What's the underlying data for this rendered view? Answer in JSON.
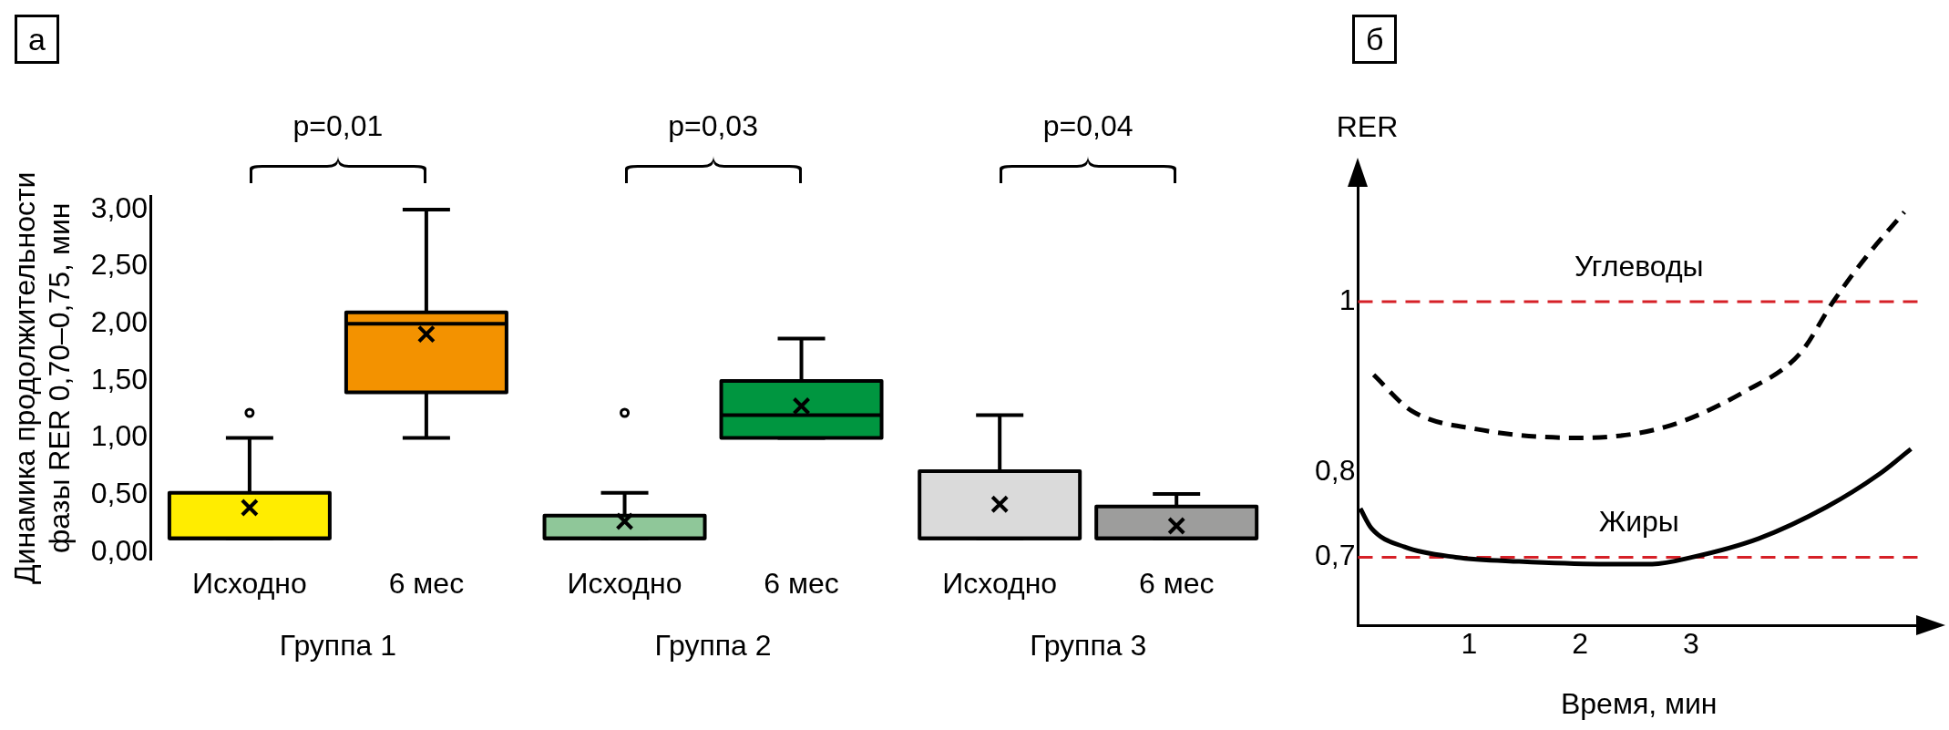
{
  "chart_data": [
    {
      "type": "box",
      "title": "а",
      "ylabel": "Динамика продолжительности\nфазы RER 0,70–0,75, мин",
      "categories": [
        "Группа 1",
        "Группа 2",
        "Группа 3"
      ],
      "ylim": [
        -0.07,
        3.12
      ],
      "yticks": [
        {
          "value": 0,
          "label": "0,00"
        },
        {
          "value": 0.5,
          "label": "0,50"
        },
        {
          "value": 1,
          "label": "1,00"
        },
        {
          "value": 1.5,
          "label": "1,50"
        },
        {
          "value": 2,
          "label": "2,00"
        },
        {
          "value": 2.5,
          "label": "2,50"
        },
        {
          "value": 3,
          "label": "3,00"
        }
      ],
      "annotations": [
        "p=0,01",
        "p=0,03",
        "p=0,04"
      ],
      "series": [
        {
          "name": "Исходно",
          "colors": [
            "#ffed00",
            "#8fc799",
            "#dadada"
          ],
          "boxes": [
            {
              "low": 0.12,
              "q1": 0.12,
              "median": 0.12,
              "q3": 0.52,
              "high": 1.0,
              "mean": 0.39,
              "outliers": [
                1.22
              ]
            },
            {
              "low": 0.12,
              "q1": 0.12,
              "median": 0.12,
              "q3": 0.32,
              "high": 0.52,
              "mean": 0.27,
              "outliers": [
                1.22
              ]
            },
            {
              "low": 0.12,
              "q1": 0.12,
              "median": 0.12,
              "q3": 0.71,
              "high": 1.2,
              "mean": 0.42
            }
          ]
        },
        {
          "name": "6 мес",
          "colors": [
            "#f39200",
            "#009640",
            "#9d9d9c"
          ],
          "boxes": [
            {
              "low": 1.0,
              "q1": 1.4,
              "median": 2.0,
              "q3": 2.1,
              "high": 3.0,
              "mean": 1.91
            },
            {
              "low": 1.0,
              "q1": 1.0,
              "median": 1.2,
              "q3": 1.5,
              "high": 1.87,
              "mean": 1.28
            },
            {
              "low": 0.12,
              "q1": 0.12,
              "median": 0.12,
              "q3": 0.4,
              "high": 0.51,
              "mean": 0.23
            }
          ]
        }
      ]
    },
    {
      "type": "line",
      "title": "б",
      "xlabel": "Время, мин",
      "ylabel": "RER",
      "xlim": [
        0,
        5.06
      ],
      "xticks": [
        1,
        2,
        3
      ],
      "ylim": [
        0.62,
        1.14
      ],
      "yticks": [
        {
          "value": 0.7,
          "label": "0,7"
        },
        {
          "value": 0.8,
          "label": "0,8"
        },
        {
          "value": 1,
          "label": "1"
        }
      ],
      "marker": "none",
      "ref_lines": [
        {
          "axis": "y",
          "value": 1,
          "label": "Углеводы",
          "color": "#d62027",
          "line_style": "dashed"
        },
        {
          "axis": "y",
          "value": 0.7,
          "label": "Жиры",
          "color": "#d62027",
          "line_style": "dashed"
        }
      ],
      "series": [
        {
          "color": "#000000",
          "line_style": "dashed",
          "x": [
            0.14,
            0.48,
            1.08,
            1.99,
            2.77,
            3.49,
            3.98,
            4.28,
            4.58,
            4.92
          ],
          "values": [
            0.914,
            0.872,
            0.85,
            0.84,
            0.853,
            0.895,
            0.939,
            1.0,
            1.053,
            1.105
          ]
        },
        {
          "color": "#000000",
          "line_style": "solid",
          "x": [
            0.02,
            0.12,
            0.42,
            0.88,
            1.45,
            2.17,
            2.65,
            3.01,
            3.61,
            4.22,
            4.7,
            4.98
          ],
          "values": [
            0.757,
            0.734,
            0.712,
            0.7,
            0.695,
            0.692,
            0.692,
            0.7,
            0.722,
            0.759,
            0.798,
            0.827
          ]
        }
      ]
    }
  ]
}
